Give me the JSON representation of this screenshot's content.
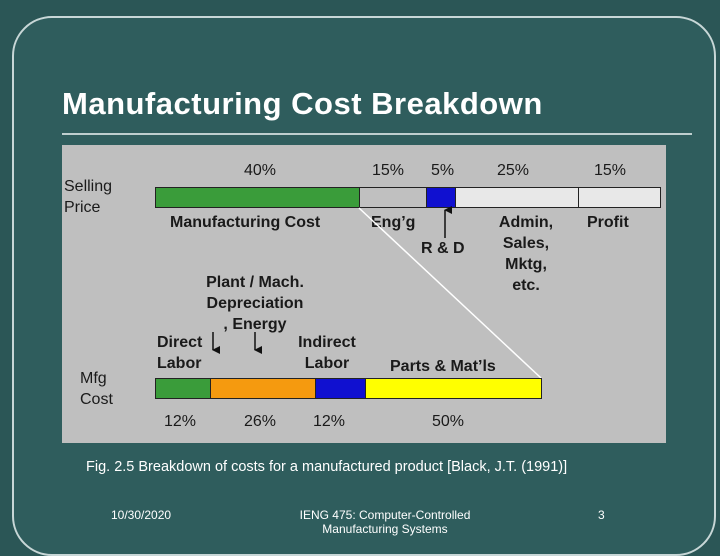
{
  "slide": {
    "title": "Manufacturing Cost Breakdown",
    "caption": "Fig. 2.5 Breakdown of costs for a manufactured product [Black, J.T. (1991)]",
    "footer": {
      "date": "10/30/2020",
      "course_line1": "IENG 475: Computer-Controlled",
      "course_line2": "Manufacturing Systems",
      "page": "3"
    }
  },
  "diagram": {
    "row_labels": {
      "selling_price": [
        "Selling",
        "Price"
      ],
      "mfg_cost": [
        "Mfg",
        "Cost"
      ]
    },
    "selling_price_bar": {
      "segments": [
        {
          "name": "Manufacturing Cost",
          "percent_label": "40%",
          "value": 40,
          "color": "#3a9c3a"
        },
        {
          "name": "Eng’g",
          "percent_label": "15%",
          "value": 15,
          "color": "#c0c0c0"
        },
        {
          "name": "R & D",
          "percent_label": "5%",
          "value": 5,
          "color": "#1010d0"
        },
        {
          "name": "Admin, Sales, Mktg, etc.",
          "percent_label": "25%",
          "value": 25,
          "color": "#e8e8e8"
        },
        {
          "name": "Profit",
          "percent_label": "15%",
          "value": 15,
          "color": "#e8e8e8"
        }
      ],
      "admin_label_lines": [
        "Admin,",
        "Sales,",
        "Mktg,",
        "etc."
      ]
    },
    "mfg_cost_bar": {
      "segments": [
        {
          "name": "Direct Labor",
          "percent_label": "12%",
          "value": 12,
          "color": "#3a9c3a"
        },
        {
          "name": "Plant / Mach. Depreciation, Energy",
          "percent_label": "26%",
          "value": 26,
          "color": "#f59a0f"
        },
        {
          "name": "Indirect Labor",
          "percent_label": "12%",
          "value": 12,
          "color": "#1010d0"
        },
        {
          "name": "Parts & Mat’ls",
          "percent_label": "50%",
          "value": 50,
          "color": "#ffff00"
        }
      ],
      "direct_label_lines": [
        "Direct",
        "Labor"
      ],
      "plant_label_lines": [
        "Plant / Mach.",
        "Depreciation",
        ", Energy"
      ],
      "indirect_label_lines": [
        "Indirect",
        "Labor"
      ]
    }
  }
}
